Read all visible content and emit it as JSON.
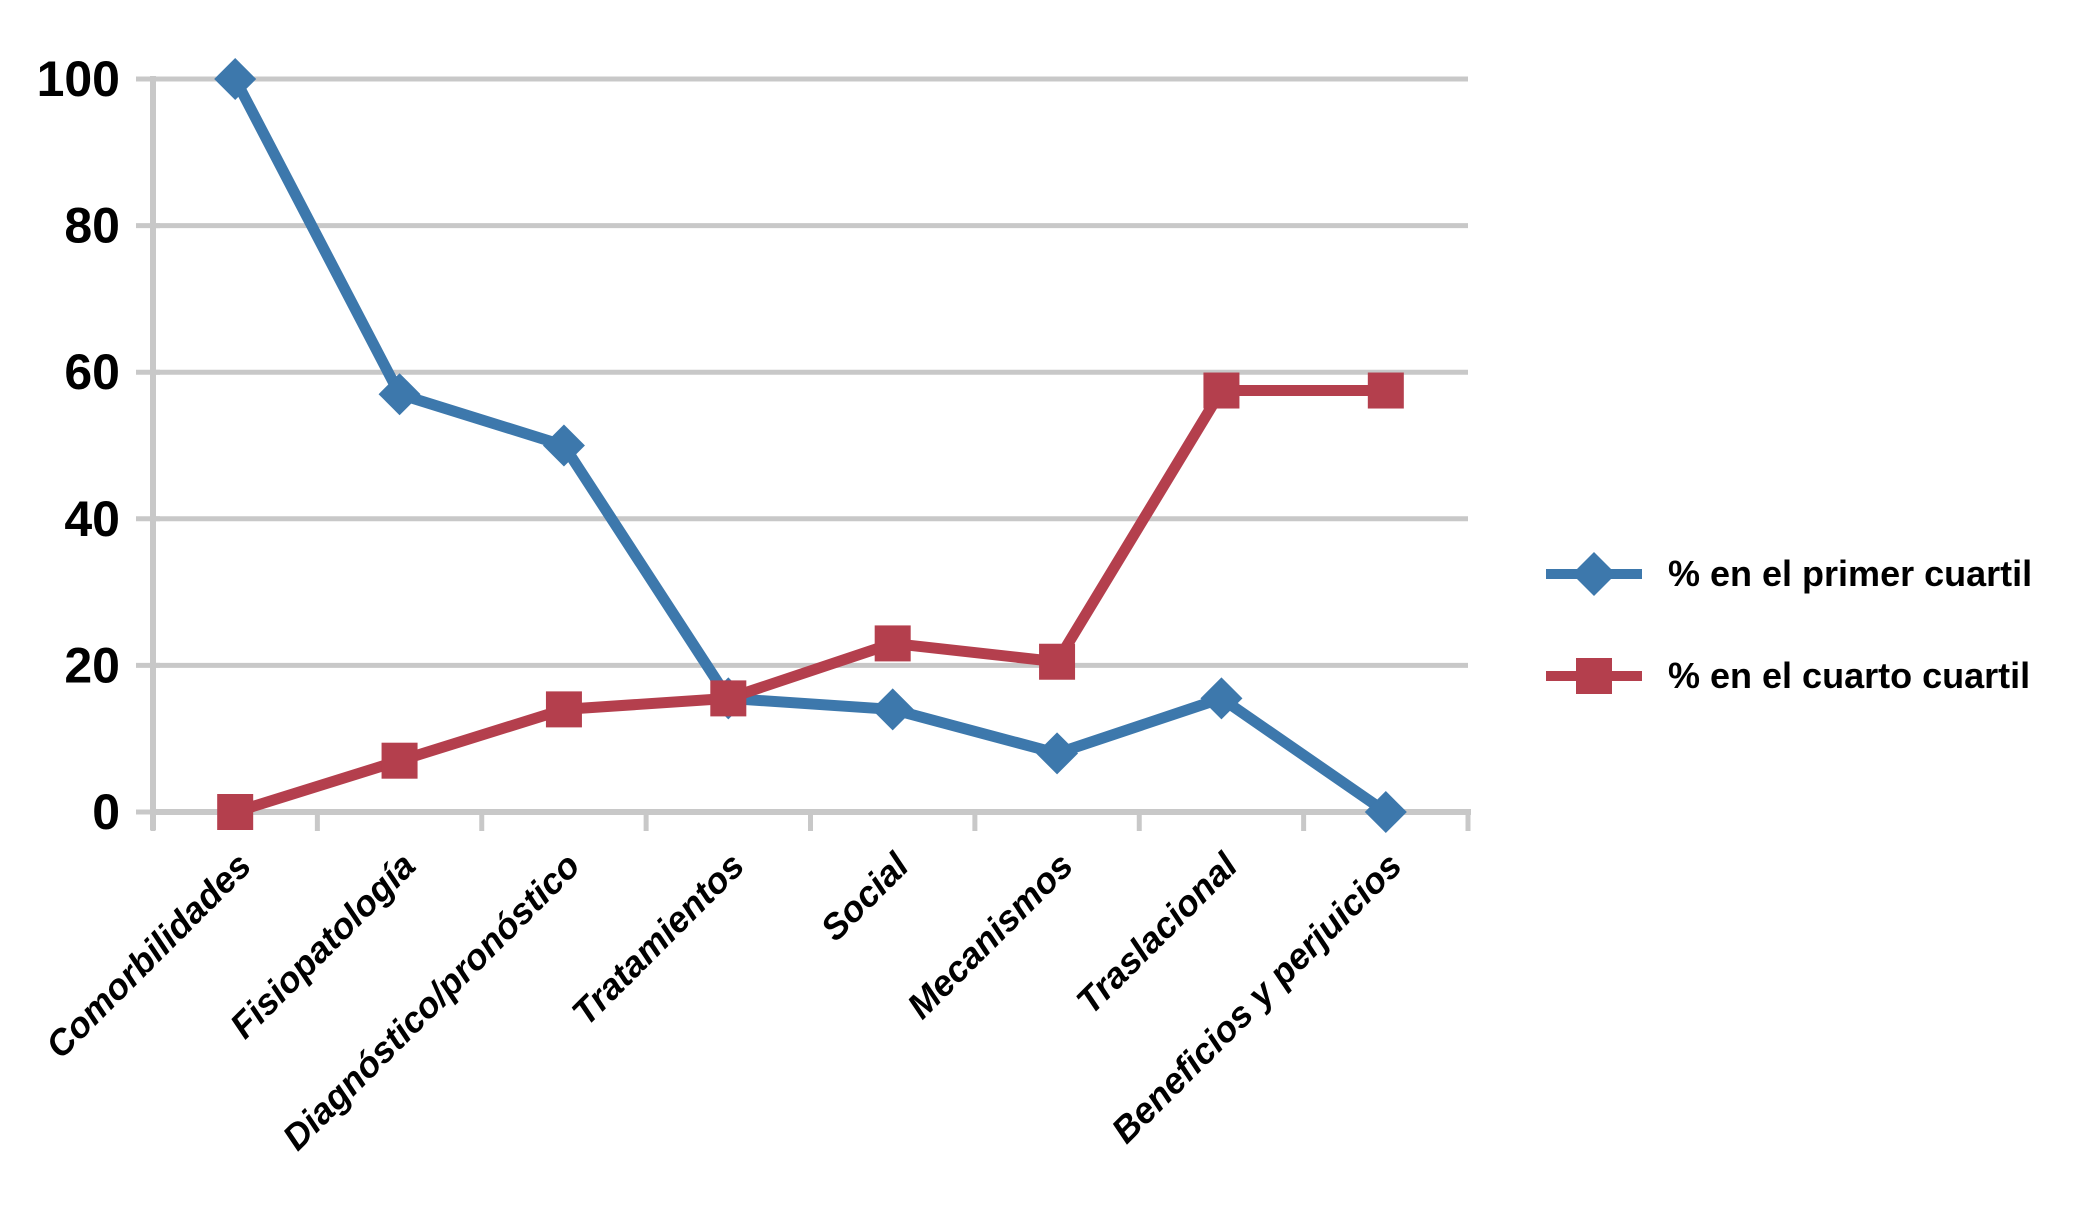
{
  "chart_data": {
    "type": "line",
    "categories": [
      "Comorbilidades",
      "Fisiopatología",
      "Diagnóstico/pronóstico",
      "Tratamientos",
      "Social",
      "Mecanismos",
      "Traslacional",
      "Beneficios y perjuicios"
    ],
    "series": [
      {
        "name": "% en el primer cuartil",
        "marker": "diamond",
        "color": "#3d78ac",
        "values": [
          100,
          57,
          50,
          15.5,
          14,
          8,
          15.5,
          0
        ]
      },
      {
        "name": "% en el cuarto cuartil",
        "marker": "square",
        "color": "#b43f4d",
        "values": [
          0,
          7,
          14,
          15.5,
          23,
          20.5,
          57.5,
          57.5
        ]
      }
    ],
    "ylim": [
      0,
      100
    ],
    "yticks": [
      0,
      20,
      40,
      60,
      80,
      100
    ],
    "ytick_labels": [
      "0",
      "20",
      "40",
      "60",
      "80",
      "100"
    ],
    "grid": "horizontal",
    "legend_position": "right",
    "colors": {
      "grid": "#c8c8c8",
      "axis": "#c8c8c8",
      "text": "#000000",
      "background": "#ffffff"
    }
  }
}
